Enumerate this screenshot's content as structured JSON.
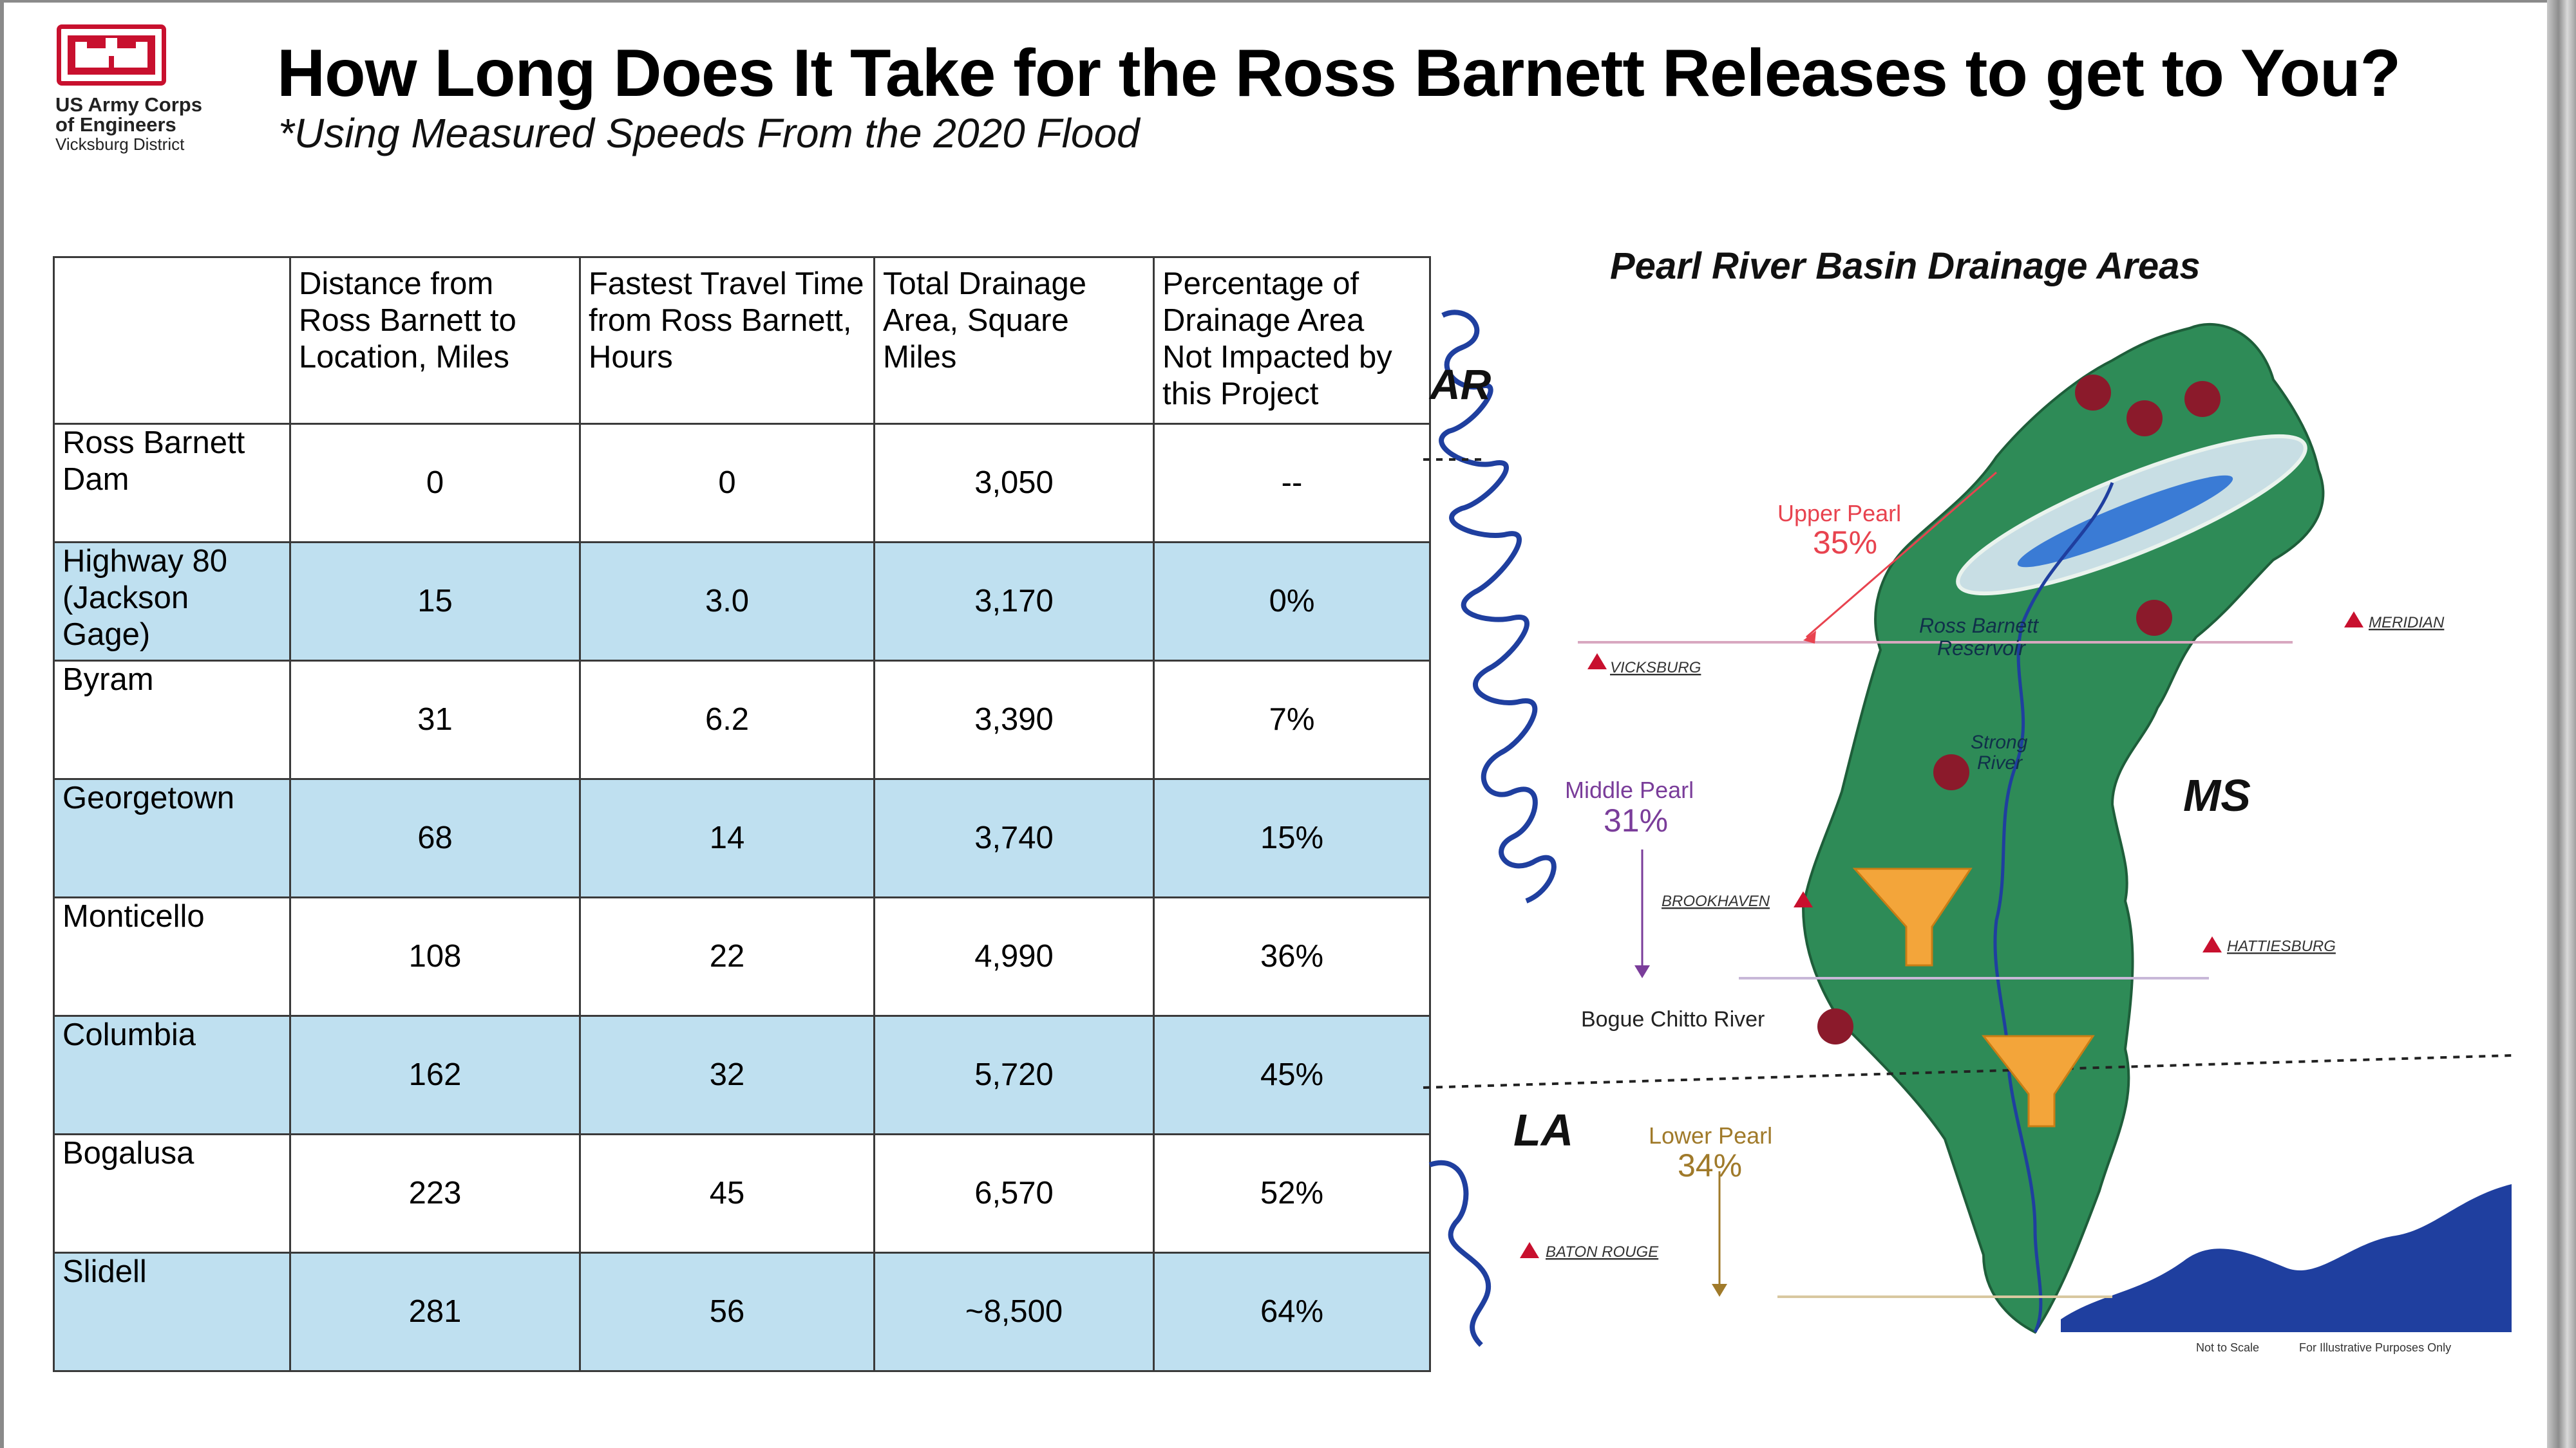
{
  "logo": {
    "line1": "US Army Corps",
    "line2": "of Engineers",
    "line3": "Vicksburg District"
  },
  "title": "How Long Does It Take for the Ross Barnett Releases to get to You?",
  "subtitle": "*Using Measured Speeds From the 2020 Flood",
  "table": {
    "headers": [
      "",
      "Distance from Ross Barnett to Location, Miles",
      "Fastest Travel Time from Ross Barnett, Hours",
      "Total Drainage Area, Square Miles",
      "Percentage of Drainage Area Not Impacted by this Project"
    ],
    "rows": [
      {
        "location": "Ross Barnett Dam",
        "distance": "0",
        "time": "0",
        "area": "3,050",
        "pct": "--"
      },
      {
        "location": "Highway 80 (Jackson Gage)",
        "distance": "15",
        "time": "3.0",
        "area": "3,170",
        "pct": "0%"
      },
      {
        "location": "Byram",
        "distance": "31",
        "time": "6.2",
        "area": "3,390",
        "pct": "7%"
      },
      {
        "location": "Georgetown",
        "distance": "68",
        "time": "14",
        "area": "3,740",
        "pct": "15%"
      },
      {
        "location": "Monticello",
        "distance": "108",
        "time": "22",
        "area": "4,990",
        "pct": "36%"
      },
      {
        "location": "Columbia",
        "distance": "162",
        "time": "32",
        "area": "5,720",
        "pct": "45%"
      },
      {
        "location": "Bogalusa",
        "distance": "223",
        "time": "45",
        "area": "6,570",
        "pct": "52%"
      },
      {
        "location": "Slidell",
        "distance": "281",
        "time": "56",
        "area": "~8,500",
        "pct": "64%"
      }
    ]
  },
  "map": {
    "title": "Pearl River Basin Drainage Areas",
    "states": {
      "ar": "AR",
      "ms": "MS",
      "la": "LA"
    },
    "regions": {
      "upper_name": "Upper Pearl",
      "upper_pct": "35%",
      "middle_name": "Middle Pearl",
      "middle_pct": "31%",
      "lower_name": "Lower Pearl",
      "lower_pct": "34%"
    },
    "features": {
      "reservoir_1": "Ross Barnett",
      "reservoir_2": "Reservoir",
      "strong_1": "Strong",
      "strong_2": "River",
      "bogue": "Bogue Chitto River"
    },
    "cities": {
      "vicksburg": "VICKSBURG",
      "meridian": "MERIDIAN",
      "brookhaven": "BROOKHAVEN",
      "hattiesburg": "HATTIESBURG",
      "baton_rouge": "BATON ROUGE"
    },
    "footnotes": {
      "scale": "Not to Scale",
      "purpose": "For Illustrative Purposes Only"
    },
    "colors": {
      "basin": "#2e8b57",
      "upper": "#e8434f",
      "middle": "#7a3d9a",
      "lower": "#a07a2a",
      "water": "#1f3f9f"
    }
  }
}
